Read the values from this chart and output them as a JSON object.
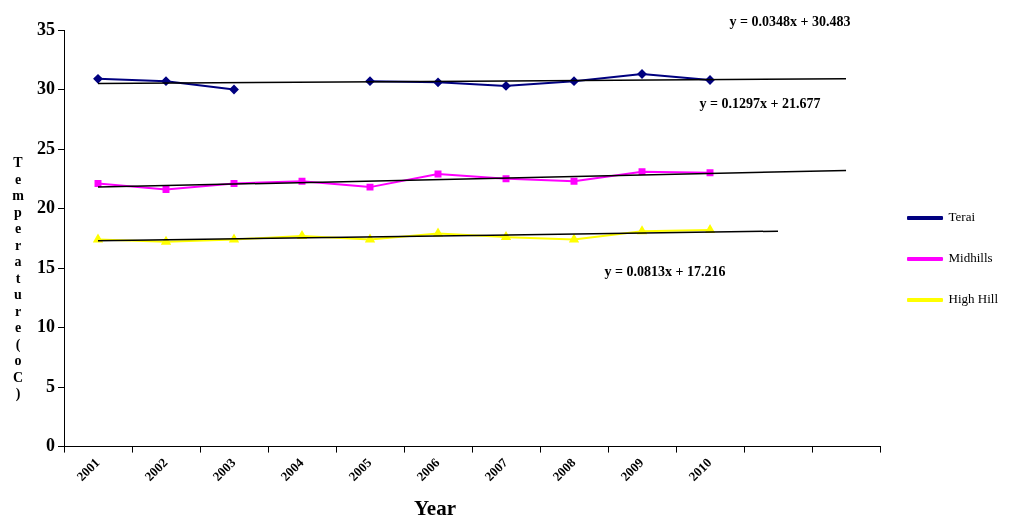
{
  "chart_data": {
    "type": "line",
    "xlabel": "Year",
    "ylabel": "Temperature (oC)",
    "categories": [
      "2001",
      "2002",
      "2003",
      "2004",
      "2005",
      "2006",
      "2007",
      "2008",
      "2009",
      "2010",
      null,
      null
    ],
    "series": [
      {
        "name": "Terai",
        "color": "#000080",
        "marker": "diamond",
        "values": [
          30.9,
          30.7,
          30.0,
          null,
          30.7,
          30.6,
          30.3,
          30.7,
          31.3,
          30.8,
          null,
          null
        ]
      },
      {
        "name": "Midhills",
        "color": "#ff00ff",
        "marker": "square",
        "values": [
          22.1,
          21.6,
          22.1,
          22.3,
          21.8,
          22.9,
          22.5,
          22.3,
          23.1,
          23.0,
          null,
          null
        ]
      },
      {
        "name": "High Hill",
        "color": "#ffff00",
        "marker": "triangle",
        "values": [
          17.4,
          17.2,
          17.4,
          17.7,
          17.4,
          17.9,
          17.6,
          17.4,
          18.1,
          18.2,
          null,
          null
        ]
      },
      {
        "color": "#000000",
        "marker": "none",
        "values": [
          30.5,
          null,
          null,
          null,
          null,
          null,
          null,
          null,
          null,
          null,
          null,
          30.9
        ]
      },
      {
        "color": "#000000",
        "marker": "none",
        "values": [
          21.8,
          null,
          null,
          null,
          null,
          null,
          null,
          null,
          null,
          null,
          null,
          23.2
        ]
      },
      {
        "color": "#000000",
        "marker": "none",
        "values": [
          17.3,
          null,
          null,
          null,
          null,
          null,
          null,
          null,
          null,
          null,
          18.1,
          null
        ]
      }
    ],
    "ylim": [
      0,
      35
    ],
    "yticks": [
      0,
      5,
      10,
      15,
      20,
      25,
      30,
      35
    ],
    "grid": false,
    "legend": "right",
    "annotations": [
      "y = 0.0348x + 30.483",
      "y = 0.1297x + 21.677",
      "y = 0.0813x + 17.216"
    ]
  }
}
